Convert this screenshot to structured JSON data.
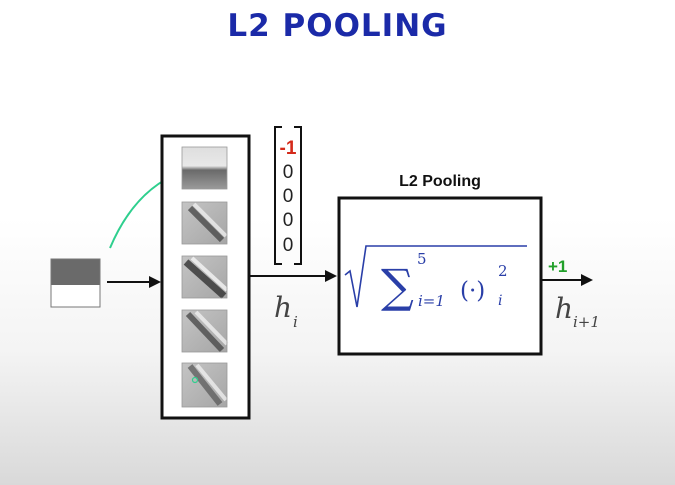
{
  "slide": {
    "title": "L2 POOLING"
  },
  "diagram": {
    "pooling_box_label": "L2 Pooling",
    "vector_values": [
      "-1",
      "0",
      "0",
      "0",
      "0"
    ],
    "h_in_symbol": "h",
    "h_in_subscript": "i",
    "h_out_symbol": "h",
    "h_out_subscript": "i+1",
    "output_change": "+1",
    "formula": {
      "sum_symbol": "∑",
      "sum_upper": "5",
      "sum_lower": "i=1",
      "operand": "(·)",
      "power": "2",
      "operand_subscript": "i"
    }
  },
  "colors": {
    "title": "#1b2aa8",
    "formula": "#2a3fa8",
    "negative_value": "#d42a1a",
    "positive_change": "#22a02a",
    "annotation_curve": "#2ecf8e"
  }
}
